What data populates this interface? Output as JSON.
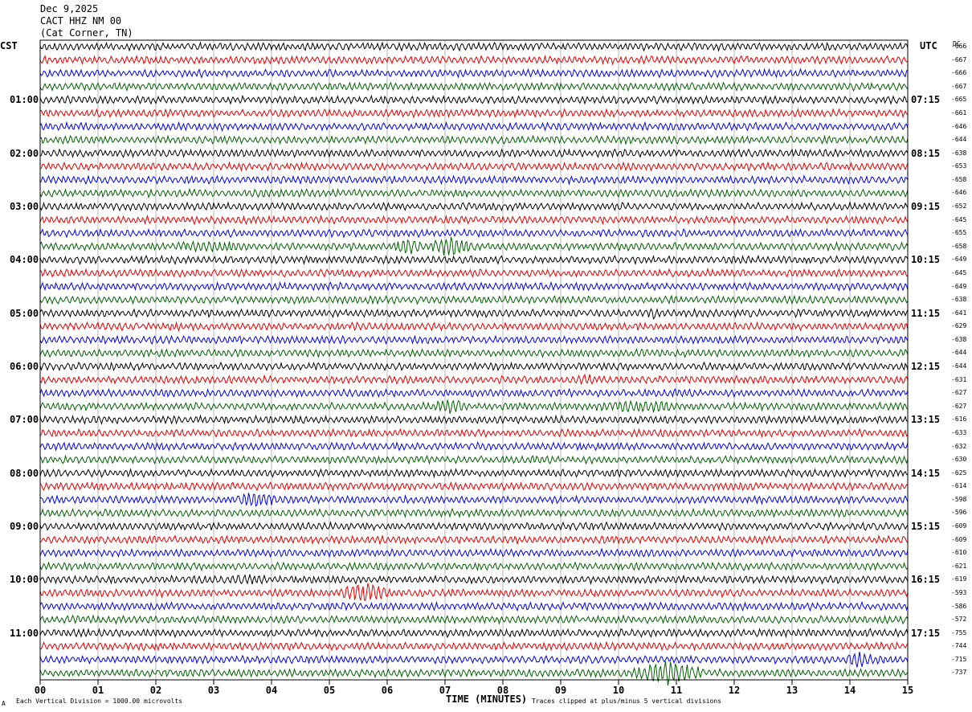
{
  "header": {
    "date": "Dec 9,2025",
    "station": "CACT HHZ NM 00",
    "location": "(Cat Corner, TN)"
  },
  "left_tz": "CST",
  "right_tz": "UTC",
  "dc_label": "DC",
  "footer": {
    "left_note": "Each Vertical Division = 1000.00 microvolts",
    "right_note": "Traces clipped at plus/minus 5 vertical divisions",
    "corner_mark": "A"
  },
  "chart_data": {
    "type": "line",
    "xlabel": "TIME (MINUTES)",
    "xlim": [
      0,
      15
    ],
    "x_ticks": [
      "00",
      "01",
      "02",
      "03",
      "04",
      "05",
      "06",
      "07",
      "08",
      "09",
      "10",
      "11",
      "12",
      "13",
      "14",
      "15"
    ],
    "trace_colors": [
      "#000000",
      "#e00000",
      "#0000e0",
      "#006000"
    ],
    "rows": 48,
    "left_hour_labels": [
      "01:00",
      "02:00",
      "03:00",
      "04:00",
      "05:00",
      "06:00",
      "07:00",
      "08:00",
      "09:00",
      "10:00",
      "11:00"
    ],
    "right_hour_labels": [
      "07:15",
      "08:15",
      "09:15",
      "10:15",
      "11:15",
      "12:15",
      "13:15",
      "14:15",
      "15:15",
      "16:15",
      "17:15"
    ],
    "dc_offsets": [
      "-666",
      "-667",
      "-666",
      "-667",
      "-665",
      "-661",
      "-646",
      "-644",
      "-638",
      "-653",
      "-658",
      "-646",
      "-652",
      "-645",
      "-655",
      "-658",
      "-649",
      "-645",
      "-649",
      "-638",
      "-641",
      "-629",
      "-638",
      "-644",
      "-644",
      "-631",
      "-627",
      "-627",
      "-616",
      "-633",
      "-632",
      "-630",
      "-625",
      "-614",
      "-598",
      "-596",
      "-609",
      "-609",
      "-610",
      "-621",
      "-619",
      "-593",
      "-586",
      "-572",
      "-755",
      "-744",
      "-715",
      "-737"
    ],
    "events": [
      {
        "row": 15,
        "start_min": 6.1,
        "end_min": 6.6,
        "amp": 2.2
      },
      {
        "row": 15,
        "start_min": 6.7,
        "end_min": 7.5,
        "amp": 3.0
      },
      {
        "row": 15,
        "start_min": 2.3,
        "end_min": 3.5,
        "amp": 1.3
      },
      {
        "row": 20,
        "start_min": 10.5,
        "end_min": 10.7,
        "amp": 1.6
      },
      {
        "row": 25,
        "start_min": 9.3,
        "end_min": 9.6,
        "amp": 1.4
      },
      {
        "row": 27,
        "start_min": 6.8,
        "end_min": 7.4,
        "amp": 2.0
      },
      {
        "row": 27,
        "start_min": 9.6,
        "end_min": 11.0,
        "amp": 1.6
      },
      {
        "row": 34,
        "start_min": 3.4,
        "end_min": 4.1,
        "amp": 2.2
      },
      {
        "row": 40,
        "start_min": 3.3,
        "end_min": 3.9,
        "amp": 1.3
      },
      {
        "row": 41,
        "start_min": 5.2,
        "end_min": 6.0,
        "amp": 3.2
      },
      {
        "row": 46,
        "start_min": 13.9,
        "end_min": 14.4,
        "amp": 2.4
      },
      {
        "row": 47,
        "start_min": 10.2,
        "end_min": 11.5,
        "amp": 3.5
      }
    ]
  }
}
